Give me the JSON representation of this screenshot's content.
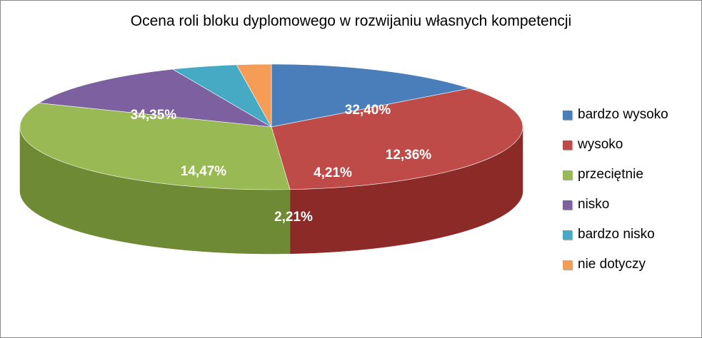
{
  "chart_data": {
    "type": "pie",
    "title": "Ocena roli bloku dyplomowego w rozwijaniu własnych kompetencji",
    "categories": [
      "bardzo wysoko",
      "wysoko",
      "przeciętnie",
      "nisko",
      "bardzo nisko",
      "nie dotyczy"
    ],
    "values": [
      14.47,
      34.35,
      32.4,
      12.36,
      4.21,
      2.21
    ],
    "value_labels": [
      "14,47%",
      "34,35%",
      "32,40%",
      "12,36%",
      "4,21%",
      "2,21%"
    ],
    "colors": [
      "#4a7ebb",
      "#be4b48",
      "#98b954",
      "#7d60a0",
      "#46aac5",
      "#f59d56"
    ],
    "side_colors": [
      "#2c5a92",
      "#8c2a28",
      "#6f8a35",
      "#3a2a52",
      "#1f6f82",
      "#9d4f16"
    ],
    "legend_position": "right",
    "style": "3d"
  }
}
